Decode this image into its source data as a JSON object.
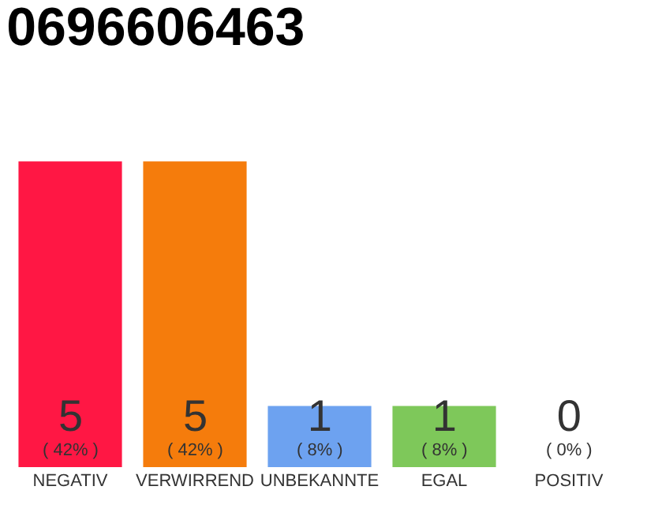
{
  "chart_data": {
    "type": "bar",
    "title": "0696606463",
    "categories": [
      "NEGATIV",
      "VERWIRREND",
      "UNBEKANNTE",
      "EGAL",
      "POSITIV"
    ],
    "values": [
      5,
      5,
      1,
      1,
      0
    ],
    "colors": [
      "#ff1744",
      "#f57c0c",
      "#6da2f0",
      "#7ec85a",
      "#eeeeee"
    ],
    "value_labels": [
      "5\n( 42% )",
      "5\n( 42% )",
      "1\n( 8% )",
      "1\n( 8% )",
      "0\n( 0% )"
    ],
    "grid": false,
    "legend": false
  }
}
